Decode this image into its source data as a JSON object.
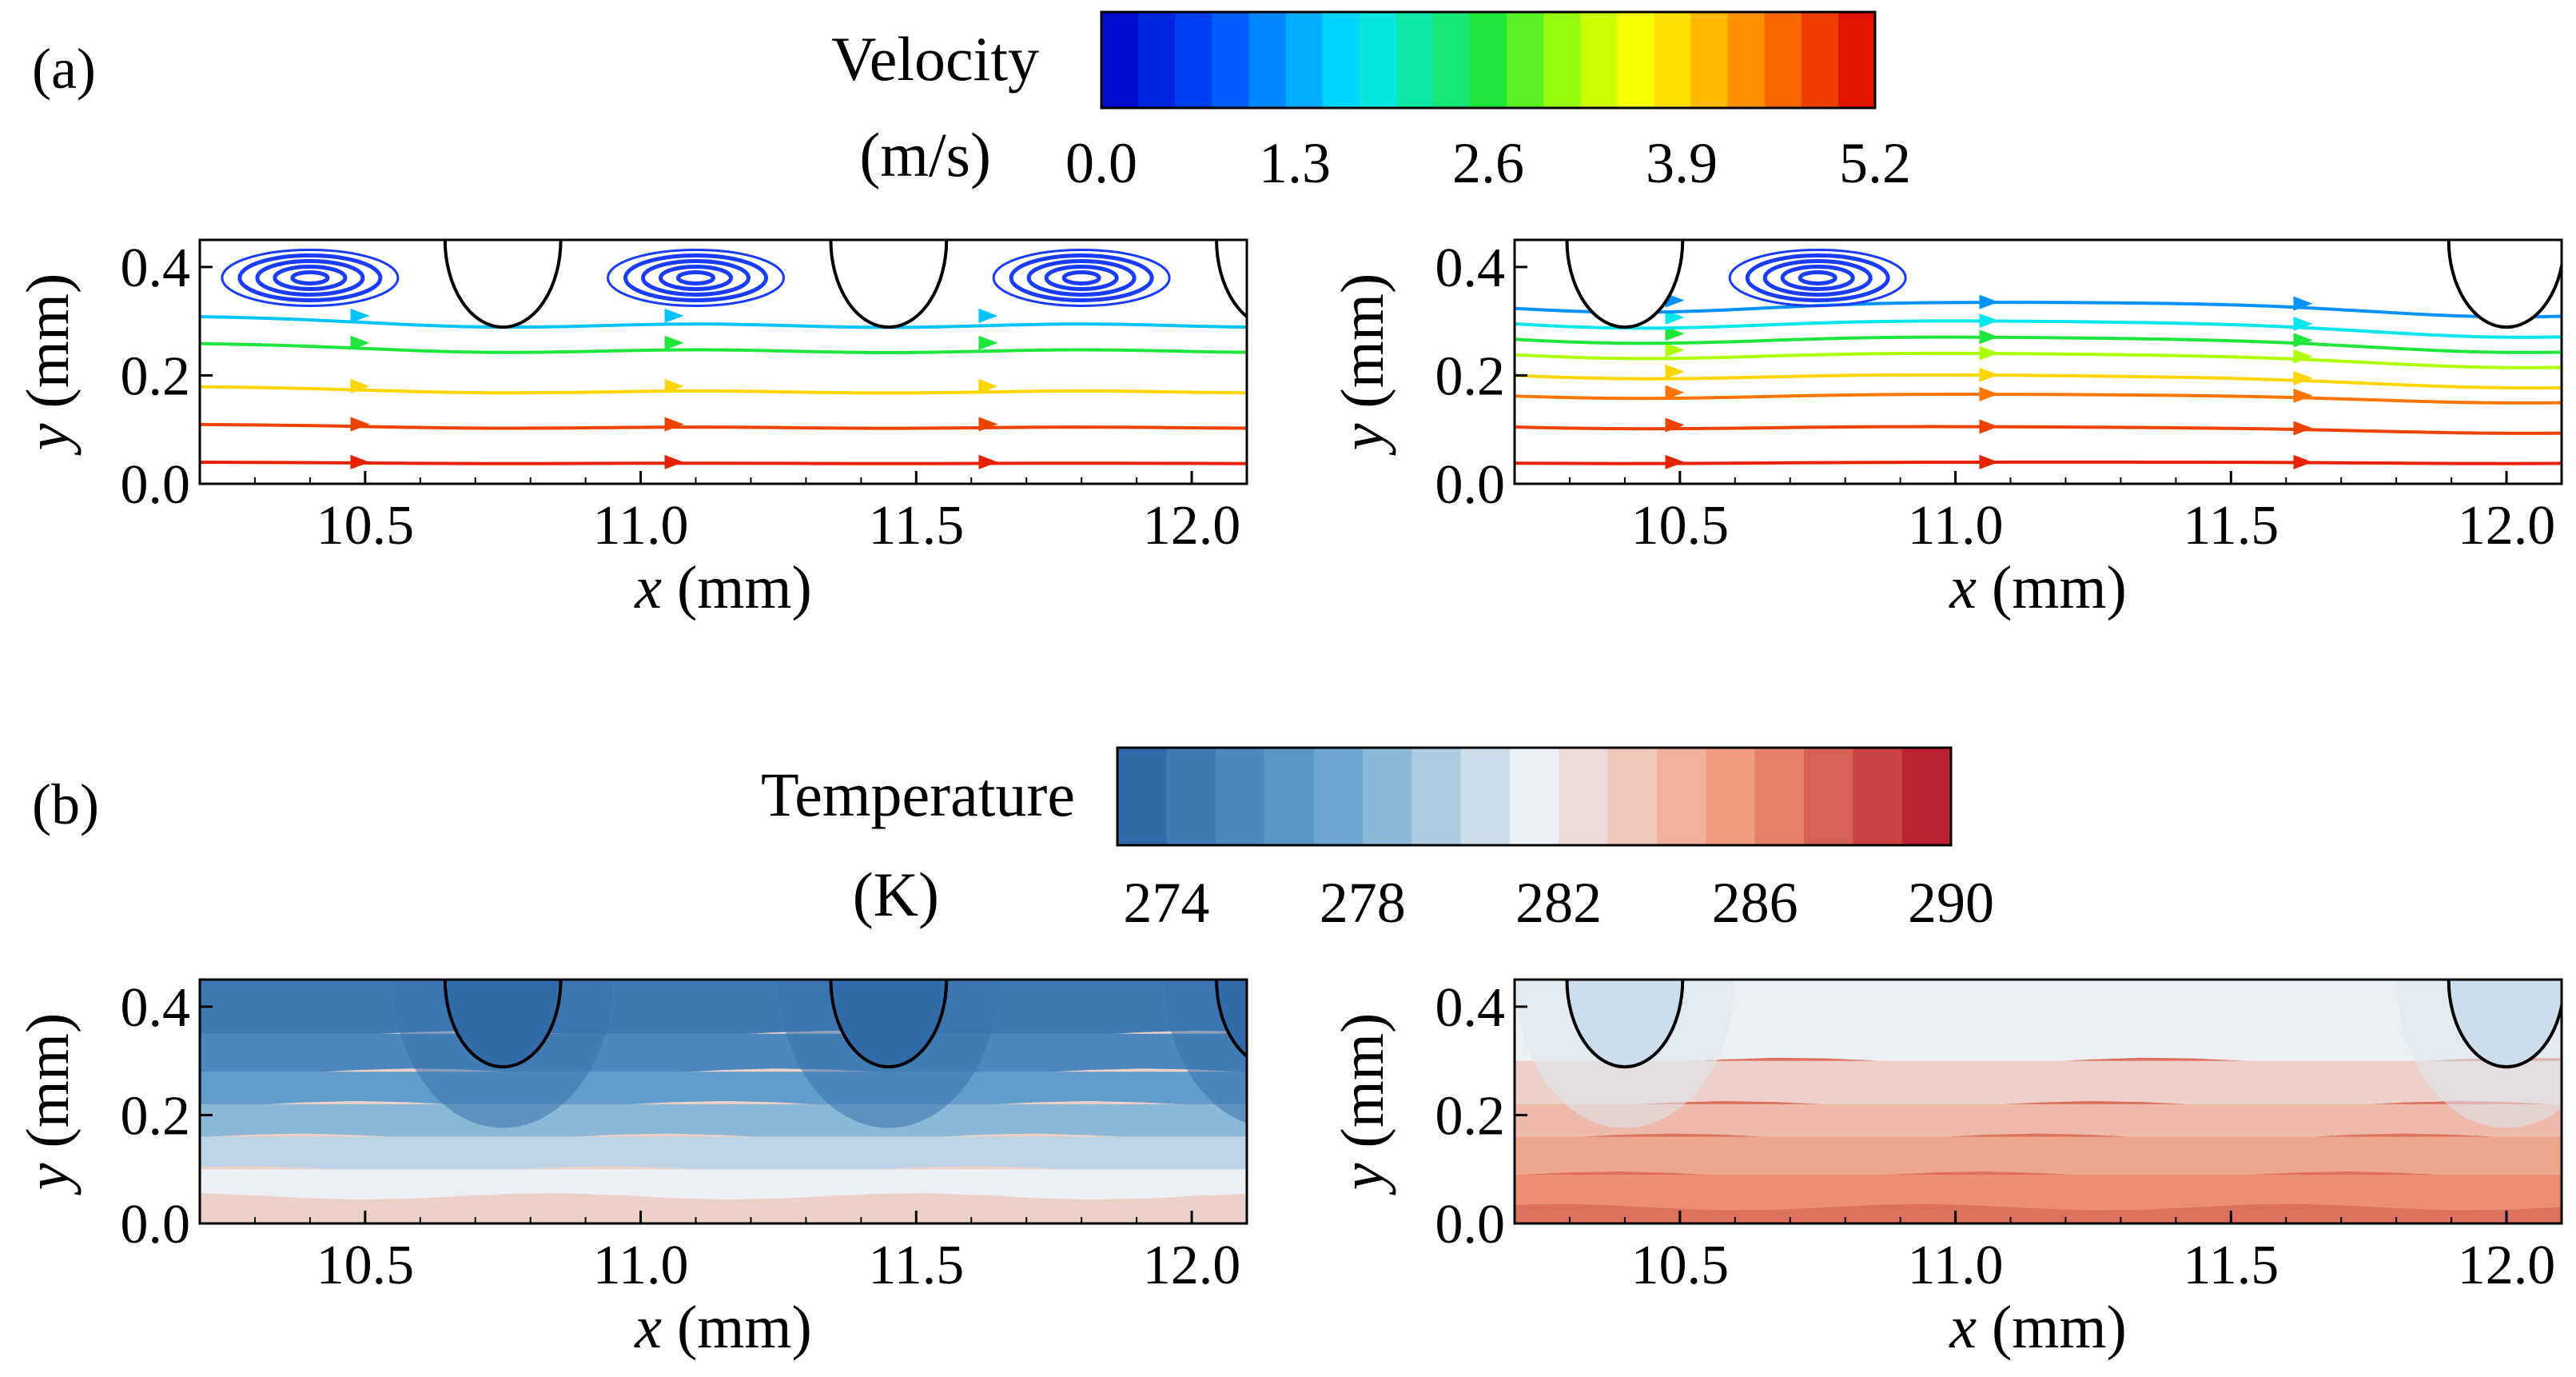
{
  "panel_a_label": "(a)",
  "panel_b_label": "(b)",
  "colorbars": {
    "velocity": {
      "title": "Velocity",
      "unit": "(m/s)",
      "range": [
        0.0,
        5.2
      ],
      "ticks": [
        "0.0",
        "1.3",
        "2.6",
        "3.9",
        "5.2"
      ],
      "levels": 21
    },
    "temperature": {
      "title": "Temperature",
      "unit": "(K)",
      "range": [
        273,
        290
      ],
      "ticks": [
        "274",
        "278",
        "282",
        "286",
        "290"
      ],
      "levels": 17
    }
  },
  "axes": {
    "xlabel_var": "x",
    "ylabel_var": "y",
    "unit": " (mm)",
    "xticks": [
      "10.5",
      "11.0",
      "11.5",
      "12.0"
    ],
    "yticks": [
      "0.0",
      "0.2",
      "0.4"
    ]
  },
  "chart_data": [
    {
      "type": "streamline",
      "name": "velocity-left",
      "xlabel": "x (mm)",
      "ylabel": "y (mm)",
      "xlim": [
        10.2,
        12.1
      ],
      "ylim": [
        0.0,
        0.45
      ],
      "particles": [
        {
          "cx": 10.75
        },
        {
          "cx": 11.45
        },
        {
          "cx": 12.15
        }
      ],
      "particle_radius": 0.14,
      "vortices": [
        {
          "cx": 10.4,
          "cy": 0.38
        },
        {
          "cx": 11.1,
          "cy": 0.38
        },
        {
          "cx": 11.8,
          "cy": 0.38
        }
      ],
      "streamlines": [
        {
          "y": 0.04,
          "velocity": 5.0
        },
        {
          "y": 0.11,
          "velocity": 4.8
        },
        {
          "y": 0.18,
          "velocity": 3.9
        },
        {
          "y": 0.26,
          "velocity": 2.6
        },
        {
          "y": 0.31,
          "velocity": 1.5
        }
      ]
    },
    {
      "type": "streamline",
      "name": "velocity-right",
      "xlabel": "x (mm)",
      "ylabel": "y (mm)",
      "xlim": [
        10.2,
        12.1
      ],
      "ylim": [
        0.0,
        0.45
      ],
      "particles": [
        {
          "cx": 10.4
        },
        {
          "cx": 12.0
        }
      ],
      "particle_radius": 0.14,
      "vortices": [
        {
          "cx": 10.75,
          "cy": 0.38
        }
      ],
      "streamlines": [
        {
          "y0": 0.04,
          "y1": 0.04,
          "velocity": 5.0
        },
        {
          "y0": 0.11,
          "y1": 0.1,
          "velocity": 4.8
        },
        {
          "y0": 0.17,
          "y1": 0.16,
          "velocity": 4.5
        },
        {
          "y0": 0.21,
          "y1": 0.19,
          "velocity": 3.9
        },
        {
          "y0": 0.25,
          "y1": 0.23,
          "velocity": 3.2
        },
        {
          "y0": 0.28,
          "y1": 0.26,
          "velocity": 2.6
        },
        {
          "y0": 0.31,
          "y1": 0.29,
          "velocity": 1.8
        },
        {
          "y0": 0.34,
          "y1": 0.33,
          "velocity": 1.2
        }
      ]
    },
    {
      "type": "heatmap",
      "name": "temperature-left",
      "xlabel": "x (mm)",
      "ylabel": "y (mm)",
      "xlim": [
        10.2,
        12.1
      ],
      "ylim": [
        0.0,
        0.45
      ],
      "particles": [
        {
          "cx": 10.75
        },
        {
          "cx": 11.45
        },
        {
          "cx": 12.15
        }
      ],
      "particle_radius": 0.14,
      "band_levels": [
        {
          "y": 0.45,
          "T": 274.5
        },
        {
          "y": 0.35,
          "T": 275.5
        },
        {
          "y": 0.28,
          "T": 277.0
        },
        {
          "y": 0.22,
          "T": 278.5
        },
        {
          "y": 0.16,
          "T": 280.0
        },
        {
          "y": 0.1,
          "T": 281.5
        },
        {
          "y": 0.05,
          "T": 283.0
        }
      ]
    },
    {
      "type": "heatmap",
      "name": "temperature-right",
      "xlabel": "x (mm)",
      "ylabel": "y (mm)",
      "xlim": [
        10.2,
        12.1
      ],
      "ylim": [
        0.0,
        0.45
      ],
      "particles": [
        {
          "cx": 10.4
        },
        {
          "cx": 12.0
        }
      ],
      "particle_radius": 0.14,
      "band_levels": [
        {
          "y": 0.45,
          "T": 281.5
        },
        {
          "y": 0.3,
          "T": 283.0
        },
        {
          "y": 0.22,
          "T": 284.0
        },
        {
          "y": 0.16,
          "T": 285.0
        },
        {
          "y": 0.09,
          "T": 286.0
        },
        {
          "y": 0.03,
          "T": 287.0
        }
      ]
    }
  ]
}
